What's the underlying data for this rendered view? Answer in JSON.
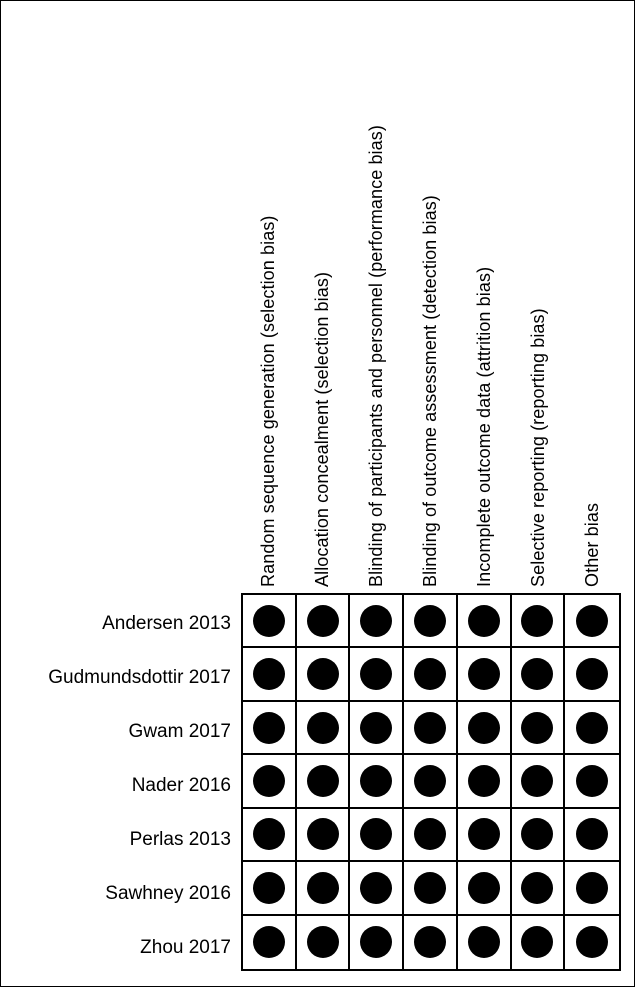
{
  "columns": [
    "Random sequence generation (selection bias)",
    "Allocation concealment (selection bias)",
    "Blinding of participants and personnel (performance bias)",
    "Blinding of outcome assessment (detection bias)",
    "Incomplete outcome data (attrition bias)",
    "Selective reporting (reporting bias)",
    "Other bias"
  ],
  "studies": [
    "Andersen 2013",
    "Gudmundsdottir 2017",
    "Gwam 2017",
    "Nader 2016",
    "Perlas 2013",
    "Sawhney 2016",
    "Zhou 2017"
  ],
  "judgements": [
    [
      "low",
      "low",
      "low",
      "low",
      "low",
      "low",
      "low"
    ],
    [
      "low",
      "low",
      "low",
      "low",
      "low",
      "low",
      "low"
    ],
    [
      "low",
      "low",
      "low",
      "low",
      "low",
      "low",
      "low"
    ],
    [
      "low",
      "low",
      "low",
      "low",
      "low",
      "low",
      "low"
    ],
    [
      "low",
      "low",
      "low",
      "low",
      "low",
      "low",
      "low"
    ],
    [
      "low",
      "low",
      "low",
      "low",
      "low",
      "low",
      "low"
    ],
    [
      "low",
      "low",
      "low",
      "low",
      "low",
      "low",
      "low"
    ]
  ],
  "colors": {
    "low": "#000000",
    "grid": "#000000",
    "background": "#ffffff"
  }
}
